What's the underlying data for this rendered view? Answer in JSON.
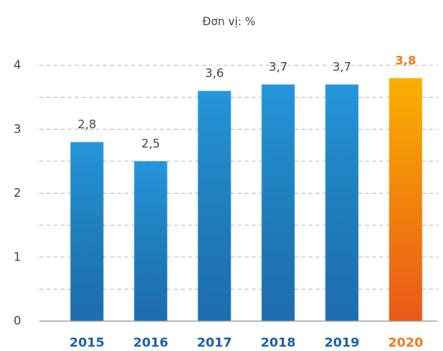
{
  "chart_data": {
    "type": "bar",
    "subtitle": "Đơn vị: %",
    "categories": [
      "2015",
      "2016",
      "2017",
      "2018",
      "2019",
      "2020"
    ],
    "values": [
      2.8,
      2.5,
      3.6,
      3.7,
      3.7,
      3.8
    ],
    "value_labels": [
      "2,8",
      "2,5",
      "3,6",
      "3,7",
      "3,7",
      "3,8"
    ],
    "colors": [
      "#2596dc",
      "#2596dc",
      "#2596dc",
      "#2596dc",
      "#2596dc",
      "#f9b000"
    ],
    "label_colors": [
      "#1b5fa8",
      "#1b5fa8",
      "#1b5fa8",
      "#1b5fa8",
      "#1b5fa8",
      "#ef7a1a"
    ],
    "ylim": [
      0,
      4
    ],
    "yticks": [
      0,
      1,
      2,
      3,
      4
    ],
    "minor_yticks": [
      0.5,
      1.5,
      2.5,
      3.5
    ],
    "grid": true
  }
}
